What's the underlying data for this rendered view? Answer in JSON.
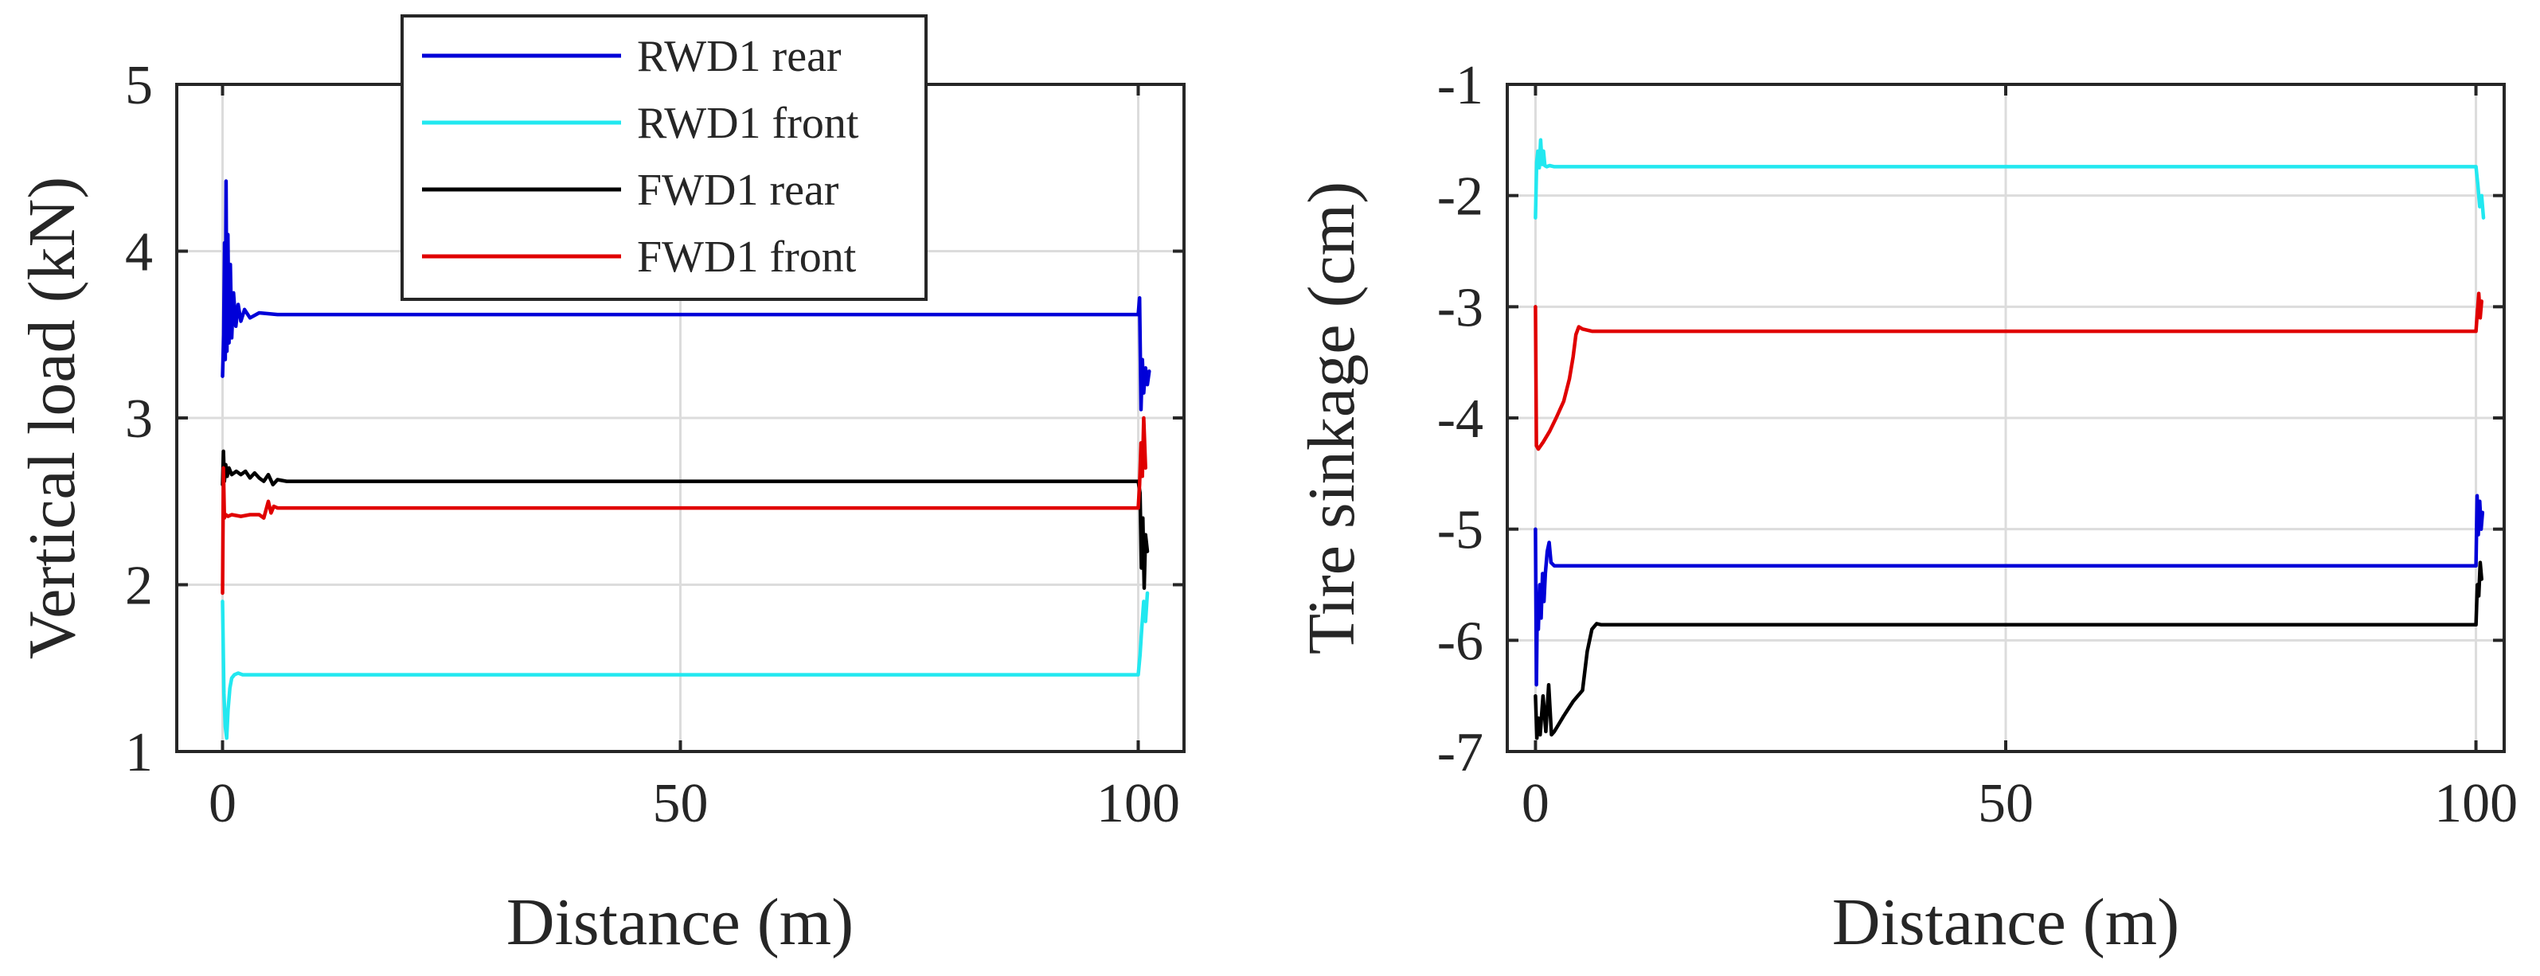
{
  "chart_data": [
    {
      "type": "line",
      "xlabel": "Distance (m)",
      "ylabel": "Vertical load (kN)",
      "xlim": [
        -5,
        105
      ],
      "ylim": [
        1,
        5
      ],
      "xticks": [
        0,
        50,
        100
      ],
      "yticks": [
        1,
        2,
        3,
        4,
        5
      ],
      "xtick_labels": [
        "0",
        "50",
        "100"
      ],
      "ytick_labels": [
        "1",
        "2",
        "3",
        "4",
        "5"
      ],
      "grid": true,
      "legend": {
        "placement": "top-center-outside",
        "entries": [
          "RWD1 rear",
          "RWD1 front",
          "FWD1 rear",
          "FWD1 front"
        ]
      },
      "series": [
        {
          "name": "RWD1 rear",
          "color": "#0000d8",
          "x": [
            0,
            0.12,
            0.22,
            0.3,
            0.38,
            0.48,
            0.58,
            0.7,
            0.85,
            1.0,
            1.2,
            1.45,
            1.7,
            2.0,
            2.4,
            3.0,
            4.0,
            6,
            20,
            50,
            80,
            100.0,
            100.15,
            100.3,
            100.45,
            100.6,
            100.8,
            101.0,
            101.2
          ],
          "y": [
            3.25,
            3.5,
            4.05,
            3.35,
            4.42,
            3.4,
            4.1,
            3.45,
            3.92,
            3.48,
            3.75,
            3.55,
            3.68,
            3.58,
            3.65,
            3.6,
            3.63,
            3.62,
            3.62,
            3.62,
            3.62,
            3.62,
            3.72,
            3.05,
            3.35,
            3.15,
            3.3,
            3.2,
            3.28
          ]
        },
        {
          "name": "RWD1 front",
          "color": "#22e8f0",
          "x": [
            0,
            0.15,
            0.3,
            0.45,
            0.6,
            0.8,
            1.0,
            1.3,
            1.7,
            2.2,
            3.0,
            5,
            20,
            50,
            80,
            100.0,
            100.2,
            100.4,
            100.6,
            100.8,
            101.0
          ],
          "y": [
            1.9,
            1.35,
            1.15,
            1.08,
            1.25,
            1.38,
            1.44,
            1.46,
            1.47,
            1.46,
            1.46,
            1.46,
            1.46,
            1.46,
            1.46,
            1.46,
            1.58,
            1.75,
            1.9,
            1.78,
            1.95
          ]
        },
        {
          "name": "FWD1 rear",
          "color": "#000000",
          "x": [
            0,
            0.1,
            0.2,
            0.35,
            0.5,
            0.7,
            1.0,
            1.5,
            2.0,
            2.5,
            3.0,
            3.5,
            4.0,
            4.5,
            5.0,
            5.5,
            6.0,
            7.0,
            20,
            50,
            80,
            100.0,
            100.2,
            100.35,
            100.5,
            100.65,
            100.8,
            101.0
          ],
          "y": [
            2.6,
            2.8,
            2.62,
            2.72,
            2.65,
            2.7,
            2.66,
            2.68,
            2.66,
            2.68,
            2.64,
            2.67,
            2.64,
            2.62,
            2.66,
            2.6,
            2.63,
            2.62,
            2.62,
            2.62,
            2.62,
            2.62,
            2.55,
            2.1,
            2.4,
            1.98,
            2.3,
            2.2
          ]
        },
        {
          "name": "FWD1 front",
          "color": "#e00000",
          "x": [
            0,
            0.1,
            0.2,
            0.35,
            0.6,
            1.0,
            2.0,
            3.0,
            4.0,
            4.5,
            5.0,
            5.3,
            5.6,
            6.0,
            7.0,
            20,
            50,
            80,
            100.0,
            100.15,
            100.3,
            100.45,
            100.6,
            100.8
          ],
          "y": [
            1.95,
            2.7,
            2.4,
            2.42,
            2.41,
            2.42,
            2.41,
            2.42,
            2.42,
            2.4,
            2.5,
            2.43,
            2.47,
            2.46,
            2.46,
            2.46,
            2.46,
            2.46,
            2.46,
            2.6,
            2.85,
            2.65,
            3.0,
            2.7
          ]
        }
      ]
    },
    {
      "type": "line",
      "xlabel": "Distance (m)",
      "ylabel": "Tire sinkage (cm)",
      "xlim": [
        -3,
        103
      ],
      "ylim": [
        -7,
        -1
      ],
      "xticks": [
        0,
        50,
        100
      ],
      "yticks": [
        -7,
        -6,
        -5,
        -4,
        -3,
        -2,
        -1
      ],
      "xtick_labels": [
        "0",
        "50",
        "100"
      ],
      "ytick_labels": [
        "-7",
        "-6",
        "-5",
        "-4",
        "-3",
        "-2",
        "-1"
      ],
      "grid": true,
      "series": [
        {
          "name": "RWD1 front",
          "color": "#22e8f0",
          "x": [
            0,
            0.12,
            0.25,
            0.4,
            0.55,
            0.7,
            0.85,
            1.0,
            1.2,
            1.5,
            2.0,
            5,
            20,
            50,
            80,
            100.0,
            100.2,
            100.4,
            100.6,
            100.8
          ],
          "y": [
            -2.2,
            -1.7,
            -1.6,
            -1.75,
            -1.5,
            -1.72,
            -1.6,
            -1.73,
            -1.74,
            -1.73,
            -1.74,
            -1.74,
            -1.74,
            -1.74,
            -1.74,
            -1.74,
            -1.9,
            -2.1,
            -2.0,
            -2.2
          ]
        },
        {
          "name": "FWD1 front",
          "color": "#e00000",
          "x": [
            0,
            0.1,
            0.3,
            0.8,
            1.5,
            2.2,
            3.0,
            3.6,
            4.0,
            4.3,
            4.6,
            5.0,
            6.0,
            8.0,
            20,
            50,
            80,
            100.0,
            100.15,
            100.3,
            100.45,
            100.6
          ],
          "y": [
            -3.0,
            -4.25,
            -4.28,
            -4.22,
            -4.12,
            -4.0,
            -3.85,
            -3.65,
            -3.45,
            -3.25,
            -3.18,
            -3.2,
            -3.22,
            -3.22,
            -3.22,
            -3.22,
            -3.22,
            -3.22,
            -3.05,
            -2.88,
            -3.1,
            -2.95
          ]
        },
        {
          "name": "RWD1 rear",
          "color": "#0000d8",
          "x": [
            0,
            0.1,
            0.2,
            0.3,
            0.45,
            0.6,
            0.75,
            0.9,
            1.05,
            1.25,
            1.45,
            1.65,
            2.0,
            3.0,
            5.0,
            20,
            50,
            80,
            100.0,
            100.12,
            100.25,
            100.4,
            100.55,
            100.7
          ],
          "y": [
            -5.0,
            -6.4,
            -5.6,
            -5.9,
            -5.5,
            -5.8,
            -5.4,
            -5.65,
            -5.4,
            -5.2,
            -5.12,
            -5.3,
            -5.33,
            -5.33,
            -5.33,
            -5.33,
            -5.33,
            -5.33,
            -5.33,
            -4.7,
            -5.05,
            -4.75,
            -5.0,
            -4.85
          ]
        },
        {
          "name": "FWD1 rear",
          "color": "#000000",
          "x": [
            0,
            0.15,
            0.3,
            0.5,
            0.8,
            1.1,
            1.4,
            1.7,
            2.0,
            2.5,
            3.0,
            4.0,
            5.0,
            5.5,
            6.0,
            6.5,
            7.0,
            8.0,
            20,
            50,
            80,
            100.0,
            100.15,
            100.3,
            100.45,
            100.6
          ],
          "y": [
            -6.5,
            -6.88,
            -6.7,
            -6.85,
            -6.5,
            -6.82,
            -6.4,
            -6.85,
            -6.82,
            -6.75,
            -6.68,
            -6.55,
            -6.45,
            -6.1,
            -5.9,
            -5.85,
            -5.86,
            -5.86,
            -5.86,
            -5.86,
            -5.86,
            -5.86,
            -5.5,
            -5.6,
            -5.3,
            -5.45
          ]
        }
      ]
    }
  ]
}
